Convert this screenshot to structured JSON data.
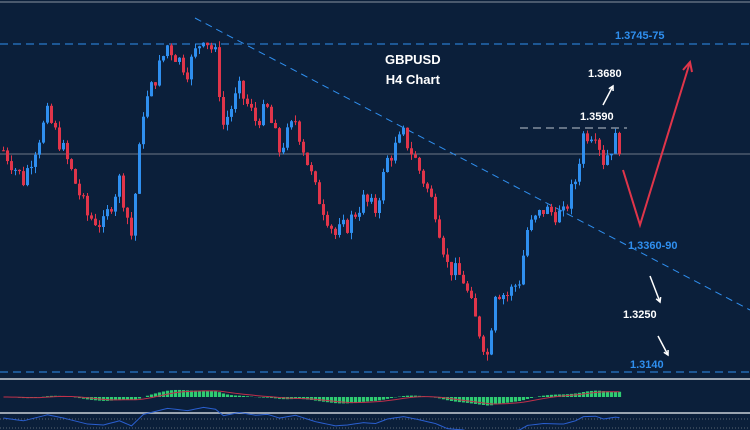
{
  "chart_data": {
    "type": "candlestick",
    "title": "GBPUSD",
    "subtitle": "H4 Chart",
    "symbol": "GBPUSD",
    "timeframe": "H4",
    "ylim": [
      1.31,
      1.38
    ],
    "grid": false,
    "price_path": {
      "bar": [
        0,
        5,
        11,
        15,
        21,
        25,
        29,
        32,
        35,
        41,
        46,
        50,
        53,
        55,
        59,
        63,
        66,
        69,
        73,
        78,
        83,
        86,
        90,
        93,
        96,
        100,
        103,
        108,
        111,
        115,
        118,
        121,
        123,
        126,
        129,
        131,
        135,
        140,
        143,
        145,
        148,
        150,
        153,
        155
      ],
      "close": [
        1.3549,
        1.3494,
        1.3614,
        1.3549,
        1.3429,
        1.3411,
        1.3494,
        1.3393,
        1.3623,
        1.3743,
        1.3697,
        1.3762,
        1.3725,
        1.3596,
        1.366,
        1.3605,
        1.3623,
        1.3549,
        1.3605,
        1.3476,
        1.3393,
        1.3411,
        1.3457,
        1.3439,
        1.3531,
        1.3577,
        1.3531,
        1.3439,
        1.3337,
        1.331,
        1.3236,
        1.3171,
        1.3291,
        1.3282,
        1.331,
        1.3402,
        1.3439,
        1.3429,
        1.3494,
        1.3577,
        1.3586,
        1.3531,
        1.3568,
        1.3549
      ]
    },
    "levels": [
      {
        "label": "1.3745-75",
        "price": 1.3745,
        "style": "dashed",
        "color": "#2f8fef"
      },
      {
        "label": "1.3140",
        "price": 1.314,
        "style": "dashed",
        "color": "#2f8fef"
      },
      {
        "label": "1.3590",
        "price": 1.359,
        "style": "dashed",
        "color": "#9aa4b0"
      }
    ],
    "annotations": [
      {
        "label": "1.3680",
        "price": 1.368,
        "color": "#ffffff"
      },
      {
        "label": "1.3360-90",
        "price": 1.336,
        "color": "#2f8fef"
      },
      {
        "label": "1.3250",
        "price": 1.325,
        "color": "#ffffff"
      }
    ],
    "current_price": 1.3542,
    "trendline": {
      "style": "dashed",
      "color": "#2f8fef",
      "direction": "descending"
    },
    "projection": {
      "color": "#e0202a",
      "path": "dip to 1.3360-90 then rally toward 1.3745-75"
    },
    "colors": {
      "background": "#0b1f3a",
      "bull": "#2f8fef",
      "bear": "#e0354a",
      "macd_hist": "#2ecc71",
      "macd_signal": "#c0304a",
      "lower_line": "#2a5fd0"
    },
    "indicators": [
      "MACD histogram with signal line",
      "oscillator line"
    ]
  }
}
